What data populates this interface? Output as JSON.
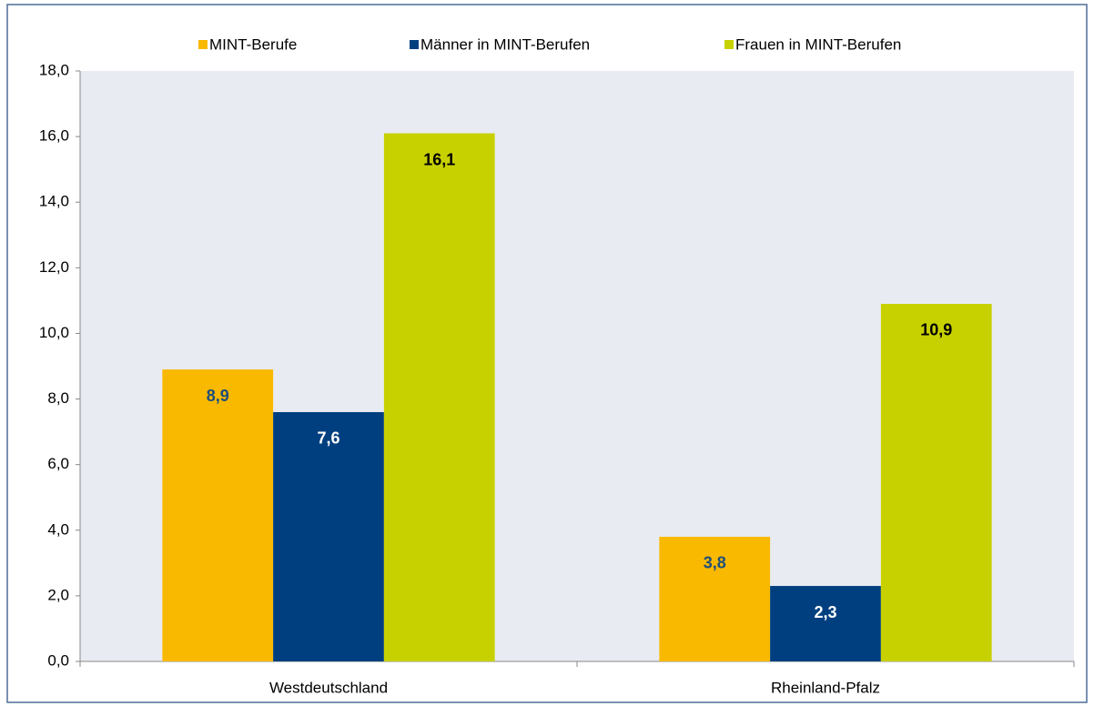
{
  "chart_data": {
    "type": "bar",
    "categories": [
      "Westdeutschland",
      "Rheinland-Pfalz"
    ],
    "series": [
      {
        "name": "MINT-Berufe",
        "color": "#f9b900",
        "label_color": "#1f4e79",
        "values": [
          8.9,
          3.8
        ],
        "value_labels": [
          "8,9",
          "3,8"
        ]
      },
      {
        "name": "Männer in MINT-Berufen",
        "color": "#003f7f",
        "label_color": "#ffffff",
        "values": [
          7.6,
          2.3
        ],
        "value_labels": [
          "7,6",
          "2,3"
        ]
      },
      {
        "name": "Frauen in MINT-Berufen",
        "color": "#c8d100",
        "label_color": "#000000",
        "values": [
          16.1,
          10.9
        ],
        "value_labels": [
          "16,1",
          "10,9"
        ]
      }
    ],
    "ylim": [
      0,
      18
    ],
    "yticks": [
      {
        "value": 0,
        "label": "0,0"
      },
      {
        "value": 2,
        "label": "2,0"
      },
      {
        "value": 4,
        "label": "4,0"
      },
      {
        "value": 6,
        "label": "6,0"
      },
      {
        "value": 8,
        "label": "8,0"
      },
      {
        "value": 10,
        "label": "10,0"
      },
      {
        "value": 12,
        "label": "12,0"
      },
      {
        "value": 14,
        "label": "14,0"
      },
      {
        "value": 16,
        "label": "16,0"
      },
      {
        "value": 18,
        "label": "18,0"
      }
    ],
    "legend": "top"
  }
}
